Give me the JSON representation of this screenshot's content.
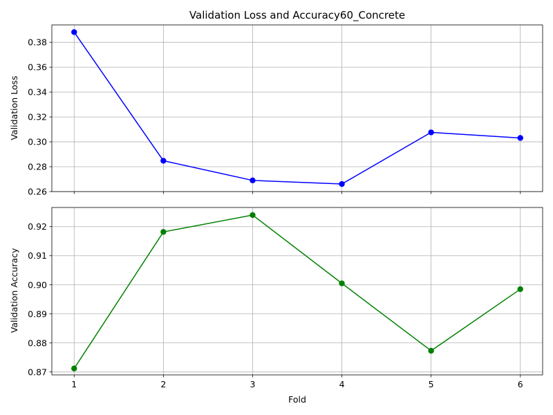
{
  "title": "Validation Loss and Accuracy60_Concrete",
  "chart_data": [
    {
      "type": "line",
      "title": "Validation Loss and Accuracy60_Concrete",
      "xlabel": "",
      "ylabel": "Validation Loss",
      "x": [
        1,
        2,
        3,
        4,
        5,
        6
      ],
      "series": [
        {
          "values": [
            0.3882,
            0.2848,
            0.269,
            0.2661,
            0.3076,
            0.3031
          ],
          "color": "#0000ff",
          "marker": "circle"
        }
      ],
      "xlim": [
        0.75,
        6.25
      ],
      "ylim": [
        0.26,
        0.394
      ],
      "xticks": [
        "1",
        "2",
        "3",
        "4",
        "5",
        "6"
      ],
      "xticks_shown": false,
      "yticks": [
        0.26,
        0.28,
        0.3,
        0.32,
        0.34,
        0.36,
        0.38
      ],
      "ytick_labels": [
        "0.26",
        "0.28",
        "0.30",
        "0.32",
        "0.34",
        "0.36",
        "0.38"
      ],
      "grid": true
    },
    {
      "type": "line",
      "title": "",
      "xlabel": "Fold",
      "ylabel": "Validation Accuracy",
      "x": [
        1,
        2,
        3,
        4,
        5,
        6
      ],
      "series": [
        {
          "values": [
            0.8712,
            0.9182,
            0.924,
            0.9005,
            0.8773,
            0.8985
          ],
          "color": "#008000",
          "marker": "circle"
        }
      ],
      "xlim": [
        0.75,
        6.25
      ],
      "ylim": [
        0.869,
        0.9266
      ],
      "xticks": [
        "1",
        "2",
        "3",
        "4",
        "5",
        "6"
      ],
      "xticks_shown": true,
      "yticks": [
        0.87,
        0.88,
        0.89,
        0.9,
        0.91,
        0.92
      ],
      "ytick_labels": [
        "0.87",
        "0.88",
        "0.89",
        "0.90",
        "0.91",
        "0.92"
      ],
      "grid": true
    }
  ]
}
